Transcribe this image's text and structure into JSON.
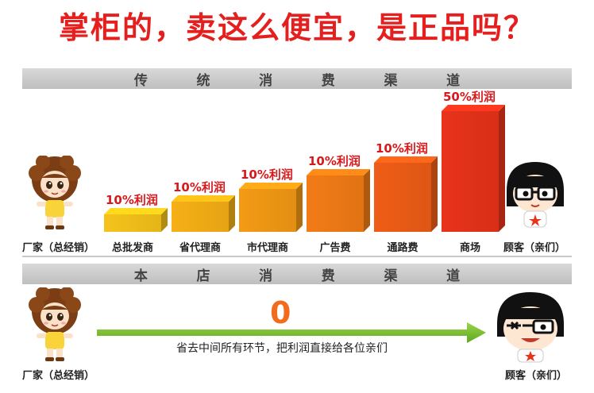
{
  "title": "掌柜的，卖这么便宜，是正品吗？",
  "traditional": {
    "heading_chars": [
      "传",
      "统",
      "消",
      "费",
      "渠",
      "道"
    ],
    "left_label": "厂家（总经销）",
    "right_label": "顾客（亲们）",
    "stages": [
      {
        "label": "总批发商",
        "profit": "10%利润",
        "level": 1,
        "color": "#f5c31a"
      },
      {
        "label": "省代理商",
        "profit": "10%利润",
        "level": 2,
        "color": "#f6b016"
      },
      {
        "label": "市代理商",
        "profit": "10%利润",
        "level": 3,
        "color": "#f49a15"
      },
      {
        "label": "广告费",
        "profit": "10%利润",
        "level": 4,
        "color": "#f27c16"
      },
      {
        "label": "通路费",
        "profit": "10%利润",
        "level": 5,
        "color": "#ef5d17"
      },
      {
        "label": "商场",
        "profit": "50%利润",
        "level": 9,
        "color": "#e8331a"
      }
    ]
  },
  "store": {
    "heading_chars": [
      "本",
      "店",
      "消",
      "费",
      "渠",
      "道"
    ],
    "left_label": "厂家（总经销）",
    "right_label": "顾客（亲们）",
    "middle_value": "0",
    "arrow_text": "省去中间所有环节，把利润直接给各位亲们"
  }
}
